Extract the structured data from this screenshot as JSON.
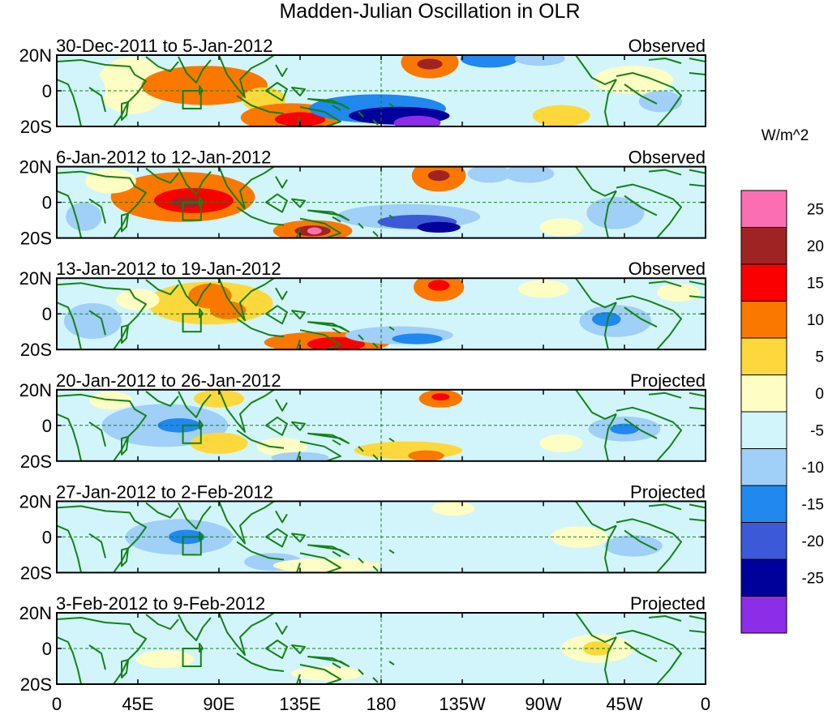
{
  "chart_data": {
    "type": "heatmap",
    "title": "Madden-Julian Oscillation in OLR",
    "variable": "OLR anomaly",
    "units": "W/m^2",
    "x_ticks": [
      "0",
      "45E",
      "90E",
      "135E",
      "180",
      "135W",
      "90W",
      "45W",
      "0"
    ],
    "x_tick_values": [
      0,
      45,
      90,
      135,
      180,
      225,
      270,
      315,
      360
    ],
    "y_ticks": [
      "20N",
      "0",
      "20S"
    ],
    "y_tick_values": [
      20,
      0,
      -20
    ],
    "xlim": [
      0,
      360
    ],
    "ylim": [
      -20,
      20
    ],
    "colorbar": {
      "label": "W/m^2",
      "labels": [
        "25",
        "20",
        "15",
        "10",
        "5",
        "0",
        "-5",
        "-10",
        "-15",
        "-20",
        "-25"
      ],
      "levels": [
        -25,
        -20,
        -15,
        -10,
        -5,
        0,
        5,
        10,
        15,
        20,
        25
      ],
      "colors": [
        "#8c2de8",
        "#00009a",
        "#3c5ad8",
        "#2088ee",
        "#a0cff8",
        "#d2f5fc",
        "#fefec4",
        "#fcd83c",
        "#fa7800",
        "#fa0000",
        "#a02323",
        "#fc6eb4"
      ]
    },
    "reference_box": {
      "lon": [
        70,
        80
      ],
      "lat": [
        -10,
        0
      ]
    },
    "panels": [
      {
        "period": "30-Dec-2011 to 5-Jan-2012",
        "status": "Observed",
        "anomalies": [
          {
            "lon": 42,
            "lat": 3,
            "rx": 20,
            "ry": 16,
            "value": 4
          },
          {
            "lon": 82,
            "lat": 3,
            "rx": 35,
            "ry": 11,
            "value": 10
          },
          {
            "lon": 72,
            "lat": 2,
            "rx": 16,
            "ry": 5,
            "value": 14
          },
          {
            "lon": 115,
            "lat": -5,
            "rx": 12,
            "ry": 7,
            "value": 5
          },
          {
            "lon": 130,
            "lat": -15,
            "rx": 28,
            "ry": 8,
            "value": 10
          },
          {
            "lon": 135,
            "lat": -16,
            "rx": 14,
            "ry": 4,
            "value": 17
          },
          {
            "lon": 207,
            "lat": 16,
            "rx": 16,
            "ry": 9,
            "value": 13
          },
          {
            "lon": 207,
            "lat": 15,
            "rx": 7,
            "ry": 3,
            "value": 22
          },
          {
            "lon": 240,
            "lat": 18,
            "rx": 16,
            "ry": 5,
            "value": -12
          },
          {
            "lon": 268,
            "lat": 18,
            "rx": 14,
            "ry": 4,
            "value": -8
          },
          {
            "lon": 178,
            "lat": -10,
            "rx": 38,
            "ry": 8,
            "value": -12
          },
          {
            "lon": 190,
            "lat": -14,
            "rx": 28,
            "ry": 5,
            "value": -21
          },
          {
            "lon": 200,
            "lat": -18,
            "rx": 13,
            "ry": 4,
            "value": -26
          },
          {
            "lon": 280,
            "lat": -14,
            "rx": 16,
            "ry": 6,
            "value": 6
          },
          {
            "lon": 320,
            "lat": 6,
            "rx": 22,
            "ry": 8,
            "value": 3
          },
          {
            "lon": 335,
            "lat": -6,
            "rx": 12,
            "ry": 6,
            "value": -7
          },
          {
            "lon": 15,
            "lat": 0,
            "rx": 12,
            "ry": 12,
            "value": -5
          }
        ]
      },
      {
        "period": "6-Jan-2012 to 12-Jan-2012",
        "status": "Observed",
        "anomalies": [
          {
            "lon": 70,
            "lat": 3,
            "rx": 40,
            "ry": 14,
            "value": 10
          },
          {
            "lon": 76,
            "lat": 1,
            "rx": 22,
            "ry": 7,
            "value": 16
          },
          {
            "lon": 72,
            "lat": 0,
            "rx": 9,
            "ry": 3,
            "value": 22
          },
          {
            "lon": 30,
            "lat": 12,
            "rx": 14,
            "ry": 7,
            "value": 4
          },
          {
            "lon": 142,
            "lat": -16,
            "rx": 22,
            "ry": 6,
            "value": 12
          },
          {
            "lon": 142,
            "lat": -16,
            "rx": 10,
            "ry": 3,
            "value": 22
          },
          {
            "lon": 143,
            "lat": -16,
            "rx": 4,
            "ry": 2,
            "value": 27
          },
          {
            "lon": 195,
            "lat": -8,
            "rx": 40,
            "ry": 7,
            "value": -10
          },
          {
            "lon": 200,
            "lat": -11,
            "rx": 22,
            "ry": 4,
            "value": -17
          },
          {
            "lon": 212,
            "lat": -14,
            "rx": 12,
            "ry": 3,
            "value": -22
          },
          {
            "lon": 212,
            "lat": 15,
            "rx": 15,
            "ry": 9,
            "value": 13
          },
          {
            "lon": 212,
            "lat": 15,
            "rx": 6,
            "ry": 3,
            "value": 21
          },
          {
            "lon": 240,
            "lat": 16,
            "rx": 12,
            "ry": 5,
            "value": -10
          },
          {
            "lon": 262,
            "lat": 16,
            "rx": 14,
            "ry": 5,
            "value": -7
          },
          {
            "lon": 310,
            "lat": -6,
            "rx": 16,
            "ry": 9,
            "value": -6
          },
          {
            "lon": 280,
            "lat": -14,
            "rx": 12,
            "ry": 5,
            "value": 4
          },
          {
            "lon": 15,
            "lat": -8,
            "rx": 10,
            "ry": 8,
            "value": -6
          }
        ]
      },
      {
        "period": "13-Jan-2012 to 19-Jan-2012",
        "status": "Observed",
        "anomalies": [
          {
            "lon": 85,
            "lat": 6,
            "rx": 35,
            "ry": 12,
            "value": 8
          },
          {
            "lon": 85,
            "lat": 10,
            "rx": 12,
            "ry": 7,
            "value": 13
          },
          {
            "lon": 95,
            "lat": 2,
            "rx": 10,
            "ry": 5,
            "value": 14
          },
          {
            "lon": 45,
            "lat": 8,
            "rx": 12,
            "ry": 6,
            "value": 4
          },
          {
            "lon": 150,
            "lat": -16,
            "rx": 35,
            "ry": 6,
            "value": 11
          },
          {
            "lon": 155,
            "lat": -17,
            "rx": 16,
            "ry": 4,
            "value": 17
          },
          {
            "lon": 212,
            "lat": 15,
            "rx": 14,
            "ry": 8,
            "value": 12
          },
          {
            "lon": 212,
            "lat": 16,
            "rx": 6,
            "ry": 3,
            "value": 18
          },
          {
            "lon": 190,
            "lat": -12,
            "rx": 30,
            "ry": 5,
            "value": -9
          },
          {
            "lon": 200,
            "lat": -14,
            "rx": 14,
            "ry": 3,
            "value": -13
          },
          {
            "lon": 310,
            "lat": -4,
            "rx": 20,
            "ry": 9,
            "value": -8
          },
          {
            "lon": 305,
            "lat": -3,
            "rx": 8,
            "ry": 4,
            "value": -13
          },
          {
            "lon": 270,
            "lat": 14,
            "rx": 14,
            "ry": 5,
            "value": 4
          },
          {
            "lon": 20,
            "lat": -4,
            "rx": 16,
            "ry": 10,
            "value": -6
          },
          {
            "lon": 345,
            "lat": 12,
            "rx": 12,
            "ry": 5,
            "value": 3
          }
        ]
      },
      {
        "period": "20-Jan-2012 to 26-Jan-2012",
        "status": "Projected",
        "anomalies": [
          {
            "lon": 60,
            "lat": 0,
            "rx": 35,
            "ry": 12,
            "value": -8
          },
          {
            "lon": 68,
            "lat": 0,
            "rx": 12,
            "ry": 4,
            "value": -13
          },
          {
            "lon": 90,
            "lat": 15,
            "rx": 14,
            "ry": 5,
            "value": 6
          },
          {
            "lon": 30,
            "lat": 14,
            "rx": 12,
            "ry": 5,
            "value": 4
          },
          {
            "lon": 90,
            "lat": -10,
            "rx": 16,
            "ry": 6,
            "value": 5
          },
          {
            "lon": 125,
            "lat": -12,
            "rx": 14,
            "ry": 5,
            "value": 4
          },
          {
            "lon": 195,
            "lat": -14,
            "rx": 30,
            "ry": 5,
            "value": 8
          },
          {
            "lon": 205,
            "lat": -17,
            "rx": 10,
            "ry": 3,
            "value": 12
          },
          {
            "lon": 213,
            "lat": 15,
            "rx": 12,
            "ry": 5,
            "value": 10
          },
          {
            "lon": 213,
            "lat": 16,
            "rx": 5,
            "ry": 2,
            "value": 17
          },
          {
            "lon": 135,
            "lat": -18,
            "rx": 16,
            "ry": 3,
            "value": -6
          },
          {
            "lon": 315,
            "lat": -2,
            "rx": 20,
            "ry": 7,
            "value": -7
          },
          {
            "lon": 315,
            "lat": -2,
            "rx": 8,
            "ry": 3,
            "value": -12
          },
          {
            "lon": 280,
            "lat": -10,
            "rx": 12,
            "ry": 5,
            "value": 4
          }
        ]
      },
      {
        "period": "27-Jan-2012 to 2-Feb-2012",
        "status": "Projected",
        "anomalies": [
          {
            "lon": 68,
            "lat": 0,
            "rx": 30,
            "ry": 10,
            "value": -8
          },
          {
            "lon": 72,
            "lat": 0,
            "rx": 10,
            "ry": 4,
            "value": -13
          },
          {
            "lon": 120,
            "lat": -14,
            "rx": 16,
            "ry": 5,
            "value": -7
          },
          {
            "lon": 150,
            "lat": -16,
            "rx": 30,
            "ry": 4,
            "value": 4
          },
          {
            "lon": 220,
            "lat": 16,
            "rx": 12,
            "ry": 4,
            "value": 4
          },
          {
            "lon": 290,
            "lat": 0,
            "rx": 16,
            "ry": 6,
            "value": 3
          },
          {
            "lon": 320,
            "lat": -5,
            "rx": 16,
            "ry": 6,
            "value": -6
          },
          {
            "lon": 260,
            "lat": -14,
            "rx": 14,
            "ry": 4,
            "value": -4
          }
        ]
      },
      {
        "period": "3-Feb-2012 to 9-Feb-2012",
        "status": "Projected",
        "anomalies": [
          {
            "lon": 300,
            "lat": 0,
            "rx": 20,
            "ry": 8,
            "value": 3
          },
          {
            "lon": 300,
            "lat": 0,
            "rx": 8,
            "ry": 4,
            "value": 7
          },
          {
            "lon": 200,
            "lat": 12,
            "rx": 20,
            "ry": 5,
            "value": -4
          },
          {
            "lon": 60,
            "lat": -6,
            "rx": 16,
            "ry": 5,
            "value": 3
          },
          {
            "lon": 150,
            "lat": -14,
            "rx": 20,
            "ry": 4,
            "value": 3
          },
          {
            "lon": 330,
            "lat": 10,
            "rx": 12,
            "ry": 5,
            "value": -4
          }
        ]
      }
    ]
  }
}
